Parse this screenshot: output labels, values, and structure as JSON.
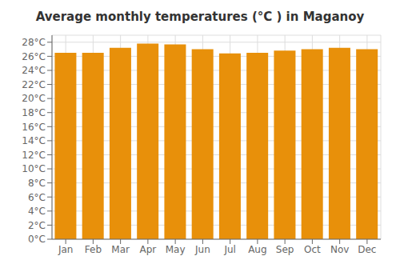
{
  "chart_data": {
    "type": "bar",
    "title": "Average monthly temperatures (°C ) in Maganoy",
    "categories": [
      "Jan",
      "Feb",
      "Mar",
      "Apr",
      "May",
      "Jun",
      "Jul",
      "Aug",
      "Sep",
      "Oct",
      "Nov",
      "Dec"
    ],
    "values": [
      26.5,
      26.5,
      27.2,
      27.8,
      27.7,
      27.0,
      26.4,
      26.5,
      26.8,
      27.0,
      27.2,
      27.0
    ],
    "color": "#E8900A",
    "ylim": [
      0,
      29
    ],
    "yticks": [
      {
        "value": 0,
        "label": "0°C"
      },
      {
        "value": 2,
        "label": "2°C"
      },
      {
        "value": 4,
        "label": "4°C"
      },
      {
        "value": 6,
        "label": "6°C"
      },
      {
        "value": 8,
        "label": "8°C"
      },
      {
        "value": 10,
        "label": "10°C"
      },
      {
        "value": 12,
        "label": "12°C"
      },
      {
        "value": 14,
        "label": "14°C"
      },
      {
        "value": 16,
        "label": "16°C"
      },
      {
        "value": 18,
        "label": "18°C"
      },
      {
        "value": 20,
        "label": "20°C"
      },
      {
        "value": 22,
        "label": "22°C"
      },
      {
        "value": 24,
        "label": "24°C"
      },
      {
        "value": 26,
        "label": "26°C"
      },
      {
        "value": 28,
        "label": "28°C"
      }
    ],
    "grid": true
  }
}
